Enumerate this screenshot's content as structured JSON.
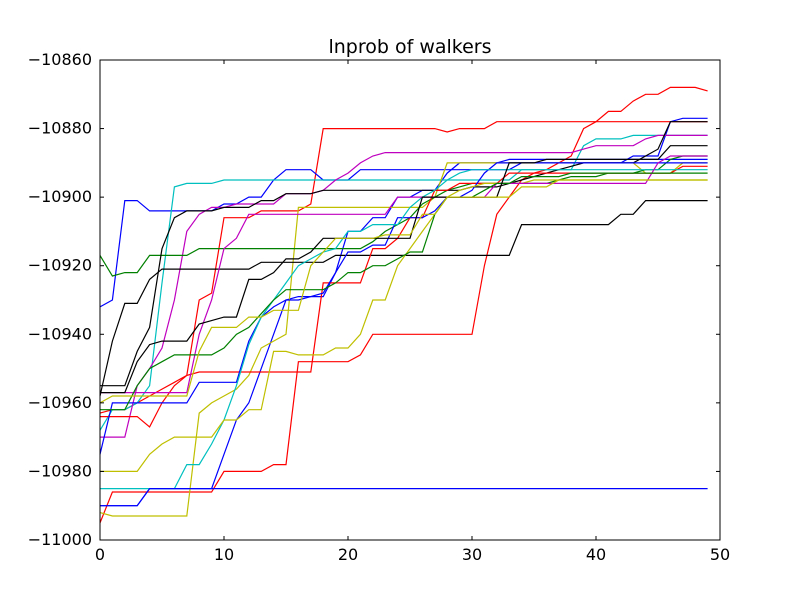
{
  "chart_data": {
    "type": "line",
    "title": "lnprob of walkers",
    "xlabel": "",
    "ylabel": "",
    "xlim": [
      0,
      50
    ],
    "ylim": [
      -11000,
      -10860
    ],
    "xticks": [
      0,
      10,
      20,
      30,
      40,
      50
    ],
    "xtick_labels": [
      "0",
      "10",
      "20",
      "30",
      "40",
      "50"
    ],
    "yticks": [
      -11000,
      -10980,
      -10960,
      -10940,
      -10920,
      -10900,
      -10880,
      -10860
    ],
    "ytick_labels": [
      "−11000",
      "−10980",
      "−10960",
      "−10940",
      "−10920",
      "−10900",
      "−10880",
      "−10860"
    ],
    "grid": false,
    "legend": "none",
    "x": [
      0,
      1,
      2,
      3,
      4,
      5,
      6,
      7,
      8,
      9,
      10,
      11,
      12,
      13,
      14,
      15,
      16,
      17,
      18,
      19,
      20,
      21,
      22,
      23,
      24,
      25,
      26,
      27,
      28,
      29,
      30,
      31,
      32,
      33,
      34,
      35,
      36,
      37,
      38,
      39,
      40,
      41,
      42,
      43,
      44,
      45,
      46,
      47,
      48,
      49
    ],
    "series": [
      {
        "color": "#ff0000",
        "values": [
          -10995,
          -10986,
          -10986,
          -10986,
          -10986,
          -10986,
          -10986,
          -10986,
          -10986,
          -10986,
          -10980,
          -10980,
          -10980,
          -10980,
          -10978,
          -10978,
          -10948,
          -10948,
          -10948,
          -10948,
          -10948,
          -10946,
          -10940,
          -10940,
          -10940,
          -10940,
          -10940,
          -10940,
          -10940,
          -10940,
          -10940,
          -10920,
          -10905,
          -10900,
          -10895,
          -10893,
          -10892,
          -10890,
          -10888,
          -10880,
          -10878,
          -10875,
          -10875,
          -10872,
          -10870,
          -10870,
          -10868,
          -10868,
          -10868,
          -10869
        ]
      },
      {
        "color": "#ff0000",
        "values": [
          -10963,
          -10962,
          -10962,
          -10960,
          -10958,
          -10956,
          -10954,
          -10952,
          -10930,
          -10928,
          -10906,
          -10906,
          -10906,
          -10904,
          -10904,
          -10904,
          -10904,
          -10902,
          -10880,
          -10880,
          -10880,
          -10880,
          -10880,
          -10880,
          -10880,
          -10880,
          -10880,
          -10880,
          -10881,
          -10880,
          -10880,
          -10880,
          -10878,
          -10878,
          -10878,
          -10878,
          -10878,
          -10878,
          -10878,
          -10878,
          -10878,
          -10878,
          -10878,
          -10878,
          -10878,
          -10878,
          -10878,
          -10878,
          -10878,
          -10878
        ]
      },
      {
        "color": "#0000ff",
        "values": [
          -10932,
          -10930,
          -10901,
          -10901,
          -10904,
          -10904,
          -10904,
          -10904,
          -10904,
          -10904,
          -10902,
          -10902,
          -10900,
          -10900,
          -10895,
          -10892,
          -10892,
          -10892,
          -10895,
          -10895,
          -10895,
          -10892,
          -10892,
          -10892,
          -10892,
          -10892,
          -10892,
          -10892,
          -10892,
          -10892,
          -10892,
          -10892,
          -10892,
          -10892,
          -10890,
          -10890,
          -10890,
          -10890,
          -10890,
          -10890,
          -10890,
          -10890,
          -10890,
          -10888,
          -10888,
          -10888,
          -10878,
          -10877,
          -10877,
          -10877
        ]
      },
      {
        "color": "#0000ff",
        "values": [
          -10990,
          -10990,
          -10990,
          -10990,
          -10985,
          -10985,
          -10985,
          -10985,
          -10985,
          -10985,
          -10975,
          -10965,
          -10960,
          -10950,
          -10940,
          -10930,
          -10929,
          -10929,
          -10929,
          -10922,
          -10910,
          -10910,
          -10906,
          -10906,
          -10900,
          -10900,
          -10898,
          -10898,
          -10893,
          -10890,
          -10890,
          -10890,
          -10890,
          -10889,
          -10889,
          -10889,
          -10889,
          -10889,
          -10889,
          -10889,
          -10889,
          -10889,
          -10889,
          -10889,
          -10889,
          -10889,
          -10889,
          -10889,
          -10889,
          -10889
        ]
      },
      {
        "color": "#00bfbf",
        "values": [
          -10968,
          -10962,
          -10962,
          -10960,
          -10955,
          -10925,
          -10897,
          -10896,
          -10896,
          -10896,
          -10895,
          -10895,
          -10895,
          -10895,
          -10895,
          -10895,
          -10895,
          -10895,
          -10895,
          -10895,
          -10895,
          -10895,
          -10895,
          -10895,
          -10895,
          -10895,
          -10895,
          -10895,
          -10895,
          -10895,
          -10895,
          -10895,
          -10895,
          -10895,
          -10892,
          -10892,
          -10892,
          -10892,
          -10892,
          -10885,
          -10883,
          -10883,
          -10883,
          -10882,
          -10882,
          -10882,
          -10882,
          -10882,
          -10882,
          -10882
        ]
      },
      {
        "color": "#bfbf00",
        "values": [
          -10992,
          -10993,
          -10993,
          -10993,
          -10993,
          -10993,
          -10993,
          -10993,
          -10963,
          -10960,
          -10958,
          -10956,
          -10952,
          -10944,
          -10942,
          -10940,
          -10903,
          -10903,
          -10903,
          -10903,
          -10903,
          -10903,
          -10903,
          -10903,
          -10903,
          -10903,
          -10903,
          -10900,
          -10890,
          -10890,
          -10890,
          -10890,
          -10890,
          -10890,
          -10890,
          -10890,
          -10890,
          -10890,
          -10890,
          -10890,
          -10890,
          -10890,
          -10890,
          -10890,
          -10893,
          -10893,
          -10893,
          -10890,
          -10890,
          -10890
        ]
      },
      {
        "color": "#bf00bf",
        "values": [
          -10970,
          -10970,
          -10970,
          -10955,
          -10950,
          -10944,
          -10930,
          -10910,
          -10905,
          -10903,
          -10903,
          -10902,
          -10902,
          -10902,
          -10902,
          -10899,
          -10899,
          -10899,
          -10898,
          -10895,
          -10893,
          -10890,
          -10888,
          -10887,
          -10887,
          -10887,
          -10887,
          -10887,
          -10887,
          -10887,
          -10887,
          -10887,
          -10887,
          -10887,
          -10887,
          -10887,
          -10887,
          -10887,
          -10887,
          -10886,
          -10885,
          -10885,
          -10885,
          -10885,
          -10883,
          -10882,
          -10882,
          -10882,
          -10882,
          -10882
        ]
      },
      {
        "color": "#008000",
        "values": [
          -10917,
          -10923,
          -10922,
          -10922,
          -10917,
          -10917,
          -10917,
          -10917,
          -10915,
          -10915,
          -10915,
          -10915,
          -10915,
          -10915,
          -10915,
          -10915,
          -10915,
          -10915,
          -10915,
          -10915,
          -10915,
          -10915,
          -10913,
          -10910,
          -10908,
          -10906,
          -10902,
          -10900,
          -10898,
          -10897,
          -10896,
          -10896,
          -10896,
          -10896,
          -10896,
          -10896,
          -10896,
          -10895,
          -10894,
          -10894,
          -10894,
          -10893,
          -10893,
          -10893,
          -10892,
          -10892,
          -10889,
          -10888,
          -10888,
          -10888
        ]
      },
      {
        "color": "#000000",
        "values": [
          -10958,
          -10942,
          -10931,
          -10931,
          -10924,
          -10921,
          -10921,
          -10921,
          -10921,
          -10921,
          -10921,
          -10921,
          -10921,
          -10919,
          -10919,
          -10919,
          -10919,
          -10919,
          -10919,
          -10917,
          -10917,
          -10917,
          -10917,
          -10917,
          -10917,
          -10917,
          -10917,
          -10917,
          -10917,
          -10917,
          -10917,
          -10917,
          -10917,
          -10917,
          -10908,
          -10908,
          -10908,
          -10908,
          -10908,
          -10908,
          -10908,
          -10908,
          -10905,
          -10905,
          -10901,
          -10901,
          -10901,
          -10901,
          -10901,
          -10901
        ]
      },
      {
        "color": "#000000",
        "values": [
          -10955,
          -10955,
          -10955,
          -10945,
          -10938,
          -10915,
          -10906,
          -10904,
          -10904,
          -10904,
          -10903,
          -10903,
          -10903,
          -10901,
          -10901,
          -10899,
          -10899,
          -10899,
          -10898,
          -10898,
          -10898,
          -10898,
          -10898,
          -10898,
          -10898,
          -10898,
          -10898,
          -10898,
          -10898,
          -10898,
          -10897,
          -10897,
          -10897,
          -10896,
          -10895,
          -10894,
          -10893,
          -10892,
          -10891,
          -10890,
          -10890,
          -10890,
          -10890,
          -10890,
          -10888,
          -10886,
          -10878,
          -10878,
          -10878,
          -10878
        ]
      },
      {
        "color": "#ff0000",
        "values": [
          -10964,
          -10964,
          -10964,
          -10964,
          -10967,
          -10960,
          -10955,
          -10952,
          -10951,
          -10951,
          -10951,
          -10951,
          -10951,
          -10951,
          -10951,
          -10951,
          -10951,
          -10951,
          -10925,
          -10925,
          -10925,
          -10925,
          -10915,
          -10915,
          -10912,
          -10906,
          -10906,
          -10898,
          -10898,
          -10896,
          -10896,
          -10896,
          -10896,
          -10893,
          -10893,
          -10893,
          -10893,
          -10893,
          -10893,
          -10893,
          -10893,
          -10893,
          -10893,
          -10893,
          -10893,
          -10893,
          -10893,
          -10891,
          -10891,
          -10891
        ]
      },
      {
        "color": "#0000ff",
        "values": [
          -10975,
          -10960,
          -10960,
          -10960,
          -10960,
          -10960,
          -10960,
          -10960,
          -10954,
          -10954,
          -10954,
          -10954,
          -10942,
          -10935,
          -10932,
          -10930,
          -10930,
          -10929,
          -10928,
          -10922,
          -10916,
          -10916,
          -10914,
          -10914,
          -10906,
          -10906,
          -10906,
          -10904,
          -10900,
          -10900,
          -10898,
          -10893,
          -10890,
          -10890,
          -10890,
          -10890,
          -10890,
          -10890,
          -10890,
          -10890,
          -10890,
          -10890,
          -10890,
          -10890,
          -10890,
          -10890,
          -10890,
          -10890,
          -10890,
          -10890
        ]
      },
      {
        "color": "#00bfbf",
        "values": [
          -10985,
          -10985,
          -10985,
          -10985,
          -10985,
          -10985,
          -10985,
          -10978,
          -10978,
          -10972,
          -10965,
          -10955,
          -10943,
          -10935,
          -10930,
          -10925,
          -10920,
          -10918,
          -10916,
          -10915,
          -10910,
          -10910,
          -10908,
          -10908,
          -10908,
          -10903,
          -10900,
          -10898,
          -10895,
          -10893,
          -10892,
          -10892,
          -10892,
          -10892,
          -10892,
          -10892,
          -10892,
          -10892,
          -10892,
          -10892,
          -10892,
          -10892,
          -10892,
          -10892,
          -10892,
          -10892,
          -10892,
          -10892,
          -10892,
          -10892
        ]
      },
      {
        "color": "#bfbf00",
        "values": [
          -10980,
          -10980,
          -10980,
          -10980,
          -10975,
          -10972,
          -10970,
          -10970,
          -10970,
          -10970,
          -10965,
          -10965,
          -10962,
          -10962,
          -10945,
          -10945,
          -10946,
          -10946,
          -10946,
          -10944,
          -10944,
          -10940,
          -10930,
          -10930,
          -10920,
          -10915,
          -10910,
          -10905,
          -10900,
          -10898,
          -10897,
          -10896,
          -10896,
          -10896,
          -10896,
          -10895,
          -10895,
          -10895,
          -10895,
          -10895,
          -10895,
          -10895,
          -10895,
          -10895,
          -10895,
          -10895,
          -10895,
          -10895,
          -10895,
          -10895
        ]
      },
      {
        "color": "#bf00bf",
        "values": [
          -10957,
          -10957,
          -10957,
          -10957,
          -10957,
          -10957,
          -10957,
          -10957,
          -10940,
          -10930,
          -10915,
          -10912,
          -10905,
          -10905,
          -10905,
          -10905,
          -10905,
          -10905,
          -10905,
          -10905,
          -10905,
          -10905,
          -10905,
          -10905,
          -10900,
          -10900,
          -10900,
          -10900,
          -10900,
          -10900,
          -10900,
          -10900,
          -10896,
          -10896,
          -10896,
          -10896,
          -10896,
          -10896,
          -10896,
          -10896,
          -10896,
          -10896,
          -10896,
          -10896,
          -10896,
          -10890,
          -10888,
          -10888,
          -10888,
          -10888
        ]
      },
      {
        "color": "#008000",
        "values": [
          -10962,
          -10962,
          -10962,
          -10955,
          -10950,
          -10948,
          -10946,
          -10946,
          -10946,
          -10946,
          -10944,
          -10940,
          -10938,
          -10934,
          -10930,
          -10927,
          -10927,
          -10927,
          -10927,
          -10925,
          -10922,
          -10922,
          -10920,
          -10920,
          -10918,
          -10916,
          -10916,
          -10905,
          -10900,
          -10900,
          -10900,
          -10898,
          -10896,
          -10896,
          -10894,
          -10894,
          -10894,
          -10894,
          -10893,
          -10893,
          -10893,
          -10893,
          -10893,
          -10893,
          -10893,
          -10893,
          -10893,
          -10893,
          -10893,
          -10893
        ]
      },
      {
        "color": "#000000",
        "values": [
          -10957,
          -10957,
          -10957,
          -10948,
          -10943,
          -10942,
          -10942,
          -10942,
          -10937,
          -10936,
          -10935,
          -10935,
          -10924,
          -10924,
          -10922,
          -10918,
          -10918,
          -10916,
          -10912,
          -10912,
          -10912,
          -10912,
          -10912,
          -10912,
          -10912,
          -10912,
          -10900,
          -10900,
          -10900,
          -10900,
          -10900,
          -10900,
          -10900,
          -10890,
          -10890,
          -10890,
          -10889,
          -10889,
          -10889,
          -10889,
          -10889,
          -10889,
          -10889,
          -10889,
          -10889,
          -10889,
          -10885,
          -10885,
          -10885,
          -10885
        ]
      },
      {
        "color": "#0000ff",
        "values": [
          -10990,
          -10990,
          -10990,
          -10990,
          -10985,
          -10985,
          -10985,
          -10985,
          -10985,
          -10985,
          -10985,
          -10985,
          -10985,
          -10985,
          -10985,
          -10985,
          -10985,
          -10985,
          -10985,
          -10985,
          -10985,
          -10985,
          -10985,
          -10985,
          -10985,
          -10985,
          -10985,
          -10985,
          -10985,
          -10985,
          -10985,
          -10985,
          -10985,
          -10985,
          -10985,
          -10985,
          -10985,
          -10985,
          -10985,
          -10985,
          -10985,
          -10985,
          -10985,
          -10985,
          -10985,
          -10985,
          -10985,
          -10985,
          -10985,
          -10985
        ]
      },
      {
        "color": "#bfbf00",
        "values": [
          -10960,
          -10958,
          -10958,
          -10958,
          -10958,
          -10958,
          -10958,
          -10958,
          -10945,
          -10938,
          -10938,
          -10938,
          -10935,
          -10935,
          -10933,
          -10933,
          -10933,
          -10920,
          -10916,
          -10912,
          -10912,
          -10912,
          -10912,
          -10911,
          -10911,
          -10911,
          -10905,
          -10905,
          -10900,
          -10900,
          -10900,
          -10900,
          -10900,
          -10900,
          -10897,
          -10897,
          -10897,
          -10895,
          -10895,
          -10895,
          -10895,
          -10895,
          -10895,
          -10895,
          -10895,
          -10895,
          -10895,
          -10895,
          -10895,
          -10895
        ]
      }
    ]
  }
}
